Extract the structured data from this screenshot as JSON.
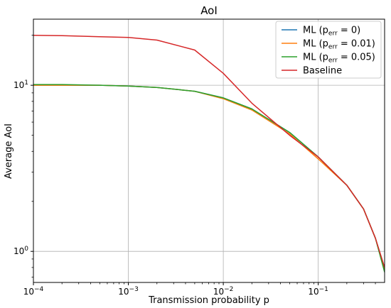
{
  "chart_data": {
    "type": "line",
    "title": "AoI",
    "xlabel": "Transmission probability p",
    "ylabel": "Average AoI",
    "xscale": "log",
    "yscale": "log",
    "xlim": [
      0.0001,
      0.5
    ],
    "ylim": [
      0.65,
      25
    ],
    "x_ticks": [
      {
        "value": 0.0001,
        "base": "10",
        "exp": "−4"
      },
      {
        "value": 0.001,
        "base": "10",
        "exp": "−3"
      },
      {
        "value": 0.01,
        "base": "10",
        "exp": "−2"
      },
      {
        "value": 0.1,
        "base": "10",
        "exp": "−1"
      }
    ],
    "y_ticks": [
      {
        "value": 1,
        "base": "10",
        "exp": "0"
      },
      {
        "value": 10,
        "base": "10",
        "exp": "1"
      }
    ],
    "grid": true,
    "legend_position": "top-right",
    "x": [
      0.0001,
      0.0002,
      0.0005,
      0.001,
      0.002,
      0.005,
      0.01,
      0.02,
      0.05,
      0.1,
      0.2,
      0.3,
      0.4,
      0.5
    ],
    "series": [
      {
        "name_main": "ML (p",
        "name_sub": "err",
        "name_tail": " = 0)",
        "color": "#1f77b4",
        "values": [
          10.0,
          10.0,
          10.0,
          9.9,
          9.7,
          9.2,
          8.4,
          7.2,
          5.2,
          3.7,
          2.5,
          1.8,
          1.2,
          0.78
        ]
      },
      {
        "name_main": "ML (p",
        "name_sub": "err",
        "name_tail": " = 0.01)",
        "color": "#ff7f0e",
        "values": [
          10.0,
          10.0,
          10.0,
          9.9,
          9.7,
          9.2,
          8.3,
          7.1,
          5.1,
          3.6,
          2.5,
          1.8,
          1.2,
          0.77
        ]
      },
      {
        "name_main": "ML (p",
        "name_sub": "err",
        "name_tail": " = 0.05)",
        "color": "#2ca02c",
        "values": [
          10.1,
          10.1,
          10.0,
          9.9,
          9.7,
          9.2,
          8.4,
          7.2,
          5.2,
          3.7,
          2.5,
          1.8,
          1.2,
          0.75
        ]
      },
      {
        "name_main": "Baseline",
        "name_sub": "",
        "name_tail": "",
        "color": "#d62728",
        "values": [
          20.0,
          19.9,
          19.6,
          19.4,
          18.7,
          16.3,
          11.8,
          7.8,
          5.0,
          3.7,
          2.5,
          1.8,
          1.2,
          0.8
        ]
      }
    ]
  }
}
